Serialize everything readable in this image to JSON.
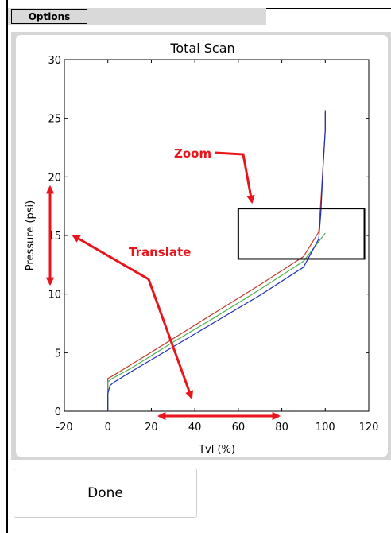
{
  "toolbar": {
    "options_label": "Options"
  },
  "footer": {
    "done_label": "Done"
  },
  "annotations": {
    "zoom": "Zoom",
    "translate": "Translate"
  },
  "colors": {
    "annotation": "#e8151b",
    "series_red": "#c0392b",
    "series_green": "#4caf50",
    "series_blue": "#1f2fb8",
    "panel": "#d6d6d6"
  },
  "chart_data": {
    "type": "line",
    "title": "Total Scan",
    "xlabel": "Tvl (%)",
    "ylabel": "Pressure (psi)",
    "xlim": [
      -20,
      120
    ],
    "ylim": [
      0,
      30
    ],
    "xticks": [
      -20,
      0,
      20,
      40,
      60,
      80,
      100,
      120
    ],
    "yticks": [
      0,
      5,
      10,
      15,
      20,
      25,
      30
    ],
    "grid": false,
    "series": [
      {
        "color": "#c0392b",
        "x": [
          0,
          0,
          2,
          10,
          30,
          50,
          70,
          90,
          97,
          98,
          99,
          100,
          100
        ],
        "y": [
          0,
          2.8,
          3.0,
          3.9,
          6.2,
          8.5,
          10.8,
          13.2,
          15.3,
          18,
          21,
          24,
          25.5
        ]
      },
      {
        "color": "#4caf50",
        "x": [
          0,
          0,
          2,
          10,
          30,
          50,
          70,
          90,
          100
        ],
        "y": [
          0,
          2.5,
          2.8,
          3.6,
          5.9,
          8.1,
          10.4,
          12.8,
          15.2
        ]
      },
      {
        "color": "#1f2fb8",
        "x": [
          0,
          0,
          1,
          3,
          10,
          30,
          50,
          70,
          90,
          97,
          98,
          99,
          100,
          100
        ],
        "y": [
          0,
          1.5,
          2.2,
          2.5,
          3.3,
          5.5,
          7.7,
          9.9,
          12.3,
          14.7,
          17,
          21,
          24,
          25.7
        ]
      }
    ],
    "zoom_box": {
      "x": [
        60,
        118
      ],
      "y": [
        13,
        17.3
      ]
    }
  }
}
